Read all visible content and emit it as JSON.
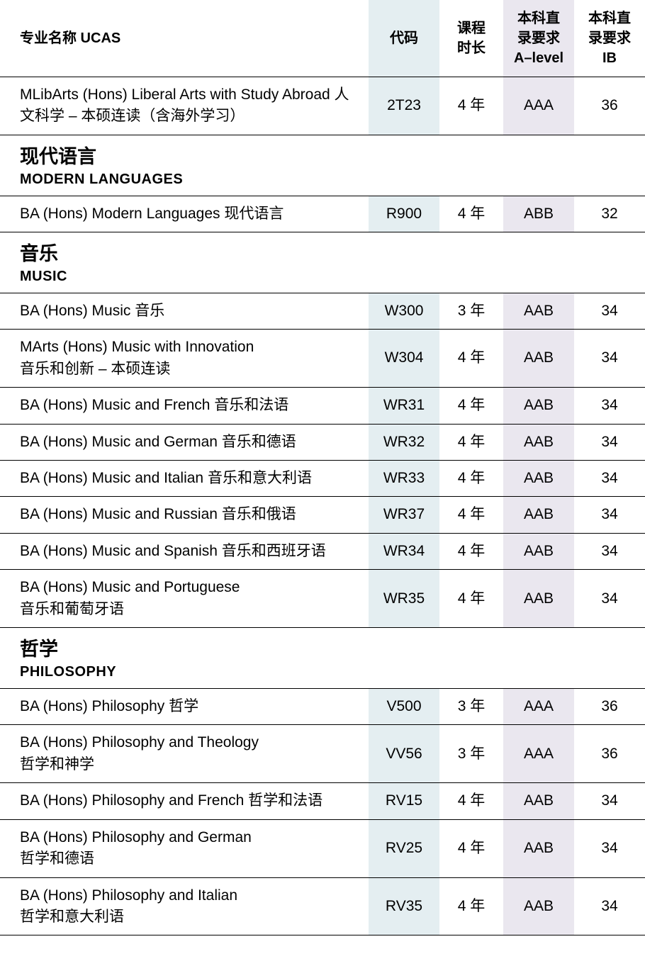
{
  "colors": {
    "code_bg": "#e4eef1",
    "alevel_bg": "#eae7ef",
    "border": "#000000",
    "background": "#ffffff"
  },
  "headers": {
    "name": "专业名称 UCAS",
    "code": "代码",
    "duration": "课程\n时长",
    "alevel": "本科直\n录要求\nA–level",
    "ib": "本科直\n录要求\nIB"
  },
  "sections": [
    {
      "title_cn": "",
      "title_en": "",
      "rows": [
        {
          "name": "MLibArts (Hons) Liberal Arts with Study Abroad 人文科学 – 本硕连读（含海外学习）",
          "code": "2T23",
          "duration": "4 年",
          "alevel": "AAA",
          "ib": "36"
        }
      ]
    },
    {
      "title_cn": "现代语言",
      "title_en": "MODERN LANGUAGES",
      "rows": [
        {
          "name": "BA (Hons) Modern Languages 现代语言",
          "code": "R900",
          "duration": "4 年",
          "alevel": "ABB",
          "ib": "32"
        }
      ]
    },
    {
      "title_cn": "音乐",
      "title_en": "MUSIC",
      "rows": [
        {
          "name": "BA (Hons) Music 音乐",
          "code": "W300",
          "duration": "3 年",
          "alevel": "AAB",
          "ib": "34"
        },
        {
          "name": "MArts (Hons) Music with Innovation\n音乐和创新 – 本硕连读",
          "code": "W304",
          "duration": "4 年",
          "alevel": "AAB",
          "ib": "34"
        },
        {
          "name": "BA (Hons) Music and French 音乐和法语",
          "code": "WR31",
          "duration": "4 年",
          "alevel": "AAB",
          "ib": "34"
        },
        {
          "name": "BA (Hons) Music and German 音乐和德语",
          "code": "WR32",
          "duration": "4 年",
          "alevel": "AAB",
          "ib": "34"
        },
        {
          "name": "BA (Hons) Music and Italian 音乐和意大利语",
          "code": "WR33",
          "duration": "4 年",
          "alevel": "AAB",
          "ib": "34"
        },
        {
          "name": "BA (Hons) Music and Russian 音乐和俄语",
          "code": "WR37",
          "duration": "4 年",
          "alevel": "AAB",
          "ib": "34"
        },
        {
          "name": "BA (Hons) Music and Spanish 音乐和西班牙语",
          "code": "WR34",
          "duration": "4 年",
          "alevel": "AAB",
          "ib": "34"
        },
        {
          "name": "BA (Hons) Music and Portuguese\n音乐和葡萄牙语",
          "code": "WR35",
          "duration": "4 年",
          "alevel": "AAB",
          "ib": "34"
        }
      ]
    },
    {
      "title_cn": "哲学",
      "title_en": "PHILOSOPHY",
      "rows": [
        {
          "name": "BA (Hons) Philosophy 哲学",
          "code": "V500",
          "duration": "3 年",
          "alevel": "AAA",
          "ib": "36"
        },
        {
          "name": "BA (Hons) Philosophy and Theology\n哲学和神学",
          "code": "VV56",
          "duration": "3 年",
          "alevel": "AAA",
          "ib": "36"
        },
        {
          "name": "BA (Hons) Philosophy and French 哲学和法语",
          "code": "RV15",
          "duration": "4 年",
          "alevel": "AAB",
          "ib": "34"
        },
        {
          "name": "BA (Hons) Philosophy and German\n哲学和德语",
          "code": "RV25",
          "duration": "4 年",
          "alevel": "AAB",
          "ib": "34"
        },
        {
          "name": "BA (Hons) Philosophy and Italian\n哲学和意大利语",
          "code": "RV35",
          "duration": "4 年",
          "alevel": "AAB",
          "ib": "34"
        }
      ]
    }
  ]
}
